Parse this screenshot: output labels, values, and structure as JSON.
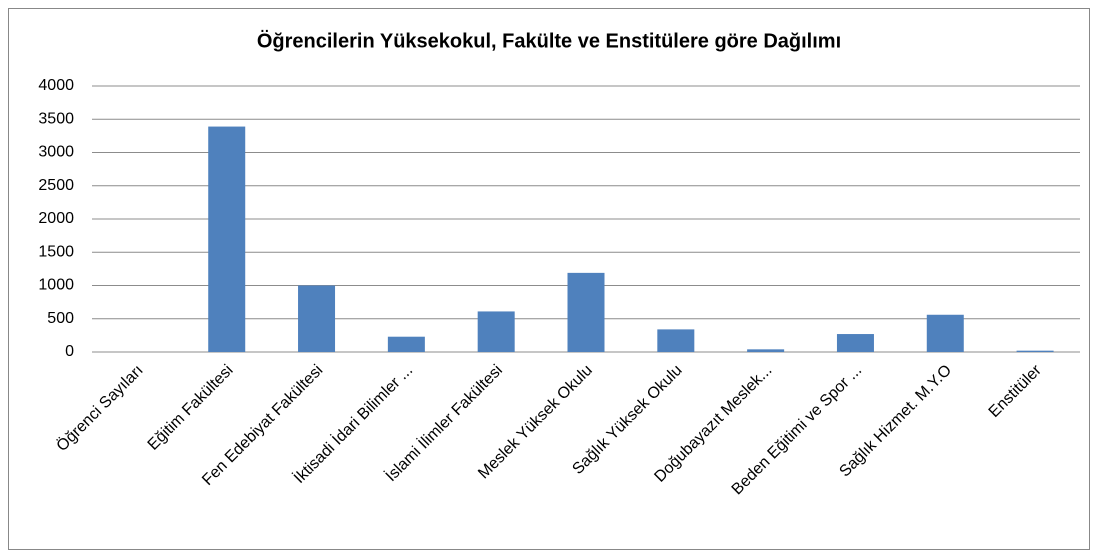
{
  "chart_data": {
    "type": "bar",
    "title": "Öğrencilerin Yüksekokul, Fakülte ve Enstitülere göre Dağılımı",
    "categories": [
      "Öğrenci Sayıları",
      "Eğitim Fakültesi",
      "Fen Edebiyat Fakültesi",
      "İktisadi İdari Bilimler ...",
      "İslami İlimler Fakültesi",
      "Meslek Yüksek Okulu",
      "Sağlık Yüksek Okulu",
      "Doğubayazıt Meslek...",
      "Beden Eğitimi ve Spor ...",
      "Sağlık Hizmet. M.Y.O",
      "Enstitüler"
    ],
    "values": [
      null,
      3390,
      1000,
      230,
      610,
      1190,
      340,
      40,
      270,
      560,
      20
    ],
    "color": "#4f81bd",
    "ylim": [
      0,
      4000
    ],
    "yticks": [
      0,
      500,
      1000,
      1500,
      2000,
      2500,
      3000,
      3500,
      4000
    ],
    "grid": true
  }
}
